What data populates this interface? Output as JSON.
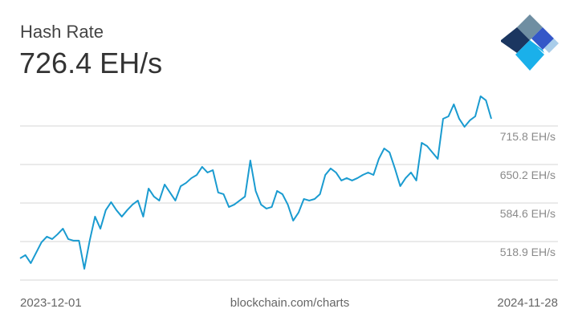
{
  "title": "Hash Rate",
  "current_value": "726.4 EH/s",
  "source": "blockchain.com/charts",
  "chart_data": {
    "type": "line",
    "categories": [
      "2023-12-01",
      null,
      null,
      null,
      null,
      null,
      null,
      null,
      null,
      null,
      null,
      null,
      null,
      null,
      null,
      null,
      null,
      null,
      null,
      null,
      null,
      null,
      null,
      null,
      null,
      null,
      null,
      null,
      null,
      null,
      null,
      null,
      null,
      null,
      null,
      null,
      null,
      null,
      null,
      null,
      null,
      null,
      null,
      null,
      null,
      null,
      null,
      null,
      null,
      null,
      null,
      null,
      null,
      null,
      null,
      null,
      null,
      null,
      null,
      null,
      null,
      null,
      null,
      null,
      null,
      null,
      null,
      null,
      null,
      null,
      null,
      null,
      null,
      null,
      null,
      null,
      null,
      null,
      null,
      null,
      null,
      null,
      null,
      null,
      null,
      null,
      null,
      null,
      "2024-11-28"
    ],
    "series": [
      {
        "name": "Hash Rate",
        "color": "#1a9bd0",
        "values": [
          490.3,
          495.8,
          482.1,
          499.9,
          517.6,
          527.2,
          523.1,
          531.3,
          540.9,
          523.1,
          520.4,
          520.4,
          472.5,
          520.4,
          561.4,
          540.9,
          572.3,
          586.0,
          572.3,
          561.4,
          572.3,
          581.9,
          588.7,
          561.4,
          609.2,
          595.5,
          588.7,
          616.0,
          602.4,
          588.7,
          613.3,
          618.8,
          627.0,
          632.4,
          646.1,
          636.5,
          640.6,
          602.4,
          599.6,
          577.8,
          581.9,
          588.7,
          595.5,
          657.0,
          605.1,
          581.9,
          575.0,
          577.8,
          605.1,
          599.6,
          581.9,
          554.5,
          568.2,
          591.4,
          588.7,
          591.4,
          599.6,
          632.4,
          643.4,
          636.5,
          622.9,
          627.0,
          622.9,
          627.0,
          632.4,
          636.5,
          632.4,
          659.8,
          677.5,
          670.7,
          643.4,
          613.3,
          627.0,
          636.5,
          622.9,
          687.1,
          681.6,
          670.7,
          659.8,
          728.1,
          732.2,
          752.7,
          728.1,
          714.4,
          725.4,
          732.2,
          766.4,
          759.5,
          728.1
        ]
      }
    ],
    "ylim": [
      453.3,
      793.7
    ],
    "yticks": [
      {
        "value": 518.9,
        "label": "518.9 EH/s"
      },
      {
        "value": 584.6,
        "label": "584.6 EH/s"
      },
      {
        "value": 650.2,
        "label": "650.2 EH/s"
      },
      {
        "value": 715.8,
        "label": "715.8 EH/s"
      }
    ],
    "grid": true
  }
}
